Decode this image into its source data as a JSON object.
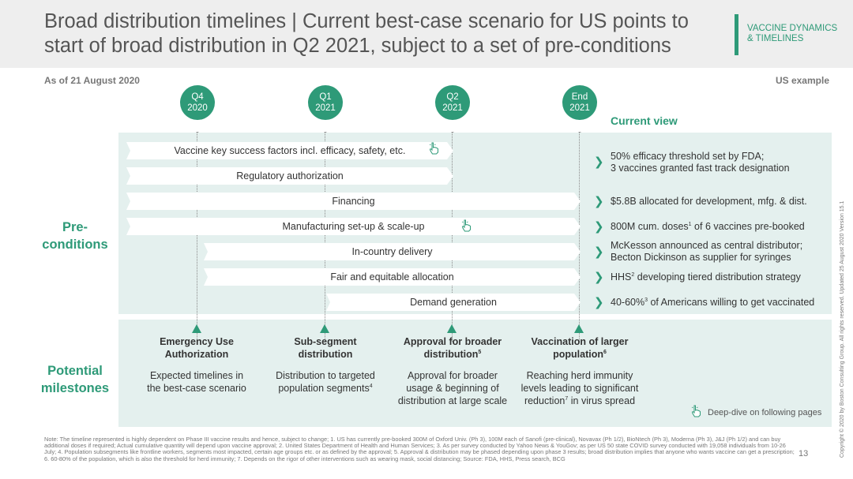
{
  "header": {
    "title": "Broad distribution timelines | Current best-case scenario for US points to start of broad distribution in Q2 2021, subject to a set of pre-conditions",
    "topic_line1": "VACCINE DYNAMICS",
    "topic_line2": "& TIMELINES"
  },
  "as_of": "As of 21 August 2020",
  "example_label": "US example",
  "timeline": [
    {
      "line1": "Q4",
      "line2": "2020"
    },
    {
      "line1": "Q1",
      "line2": "2021"
    },
    {
      "line1": "Q2",
      "line2": "2021"
    },
    {
      "line1": "End",
      "line2": "2021"
    }
  ],
  "current_view_label": "Current view",
  "preconditions_label_1": "Pre-",
  "preconditions_label_2": "conditions",
  "preconditions": [
    {
      "label": "Vaccine key success factors incl. efficacy, safety, etc.",
      "view_line1": "50% efficacy threshold set by FDA;",
      "view_line2": "3 vaccines granted fast track designation"
    },
    {
      "label": "Regulatory authorization",
      "view_line1": "",
      "view_line2": ""
    },
    {
      "label": "Financing",
      "view_line1": "$5.8B allocated for development, mfg. & dist.",
      "view_line2": ""
    },
    {
      "label": "Manufacturing set-up & scale-up",
      "view_pre": "800M cum. doses",
      "view_sup": "1",
      "view_post": " of 6 vaccines pre-booked"
    },
    {
      "label": "In-country delivery",
      "view_line1": "McKesson announced as central distributor;",
      "view_line2": "Becton Dickinson as supplier for syringes"
    },
    {
      "label": "Fair and equitable allocation",
      "view_pre": "HHS",
      "view_sup": "2",
      "view_post": " developing tiered distribution strategy"
    },
    {
      "label": "Demand generation",
      "view_pre": "40-60%",
      "view_sup": "3",
      "view_post": " of Americans willing to get vaccinated"
    }
  ],
  "milestones_label_1": "Potential",
  "milestones_label_2": "milestones",
  "milestones": [
    {
      "title_line1": "Emergency Use",
      "title_line2": "Authorization",
      "title_sup": "",
      "desc_line1": "Expected timelines in",
      "desc_line2": "the best-case scenario",
      "desc_line3": "",
      "desc_sup": ""
    },
    {
      "title_line1": "Sub-segment",
      "title_line2": "distribution",
      "title_sup": "",
      "desc_line1": "Distribution to targeted",
      "desc_line2": "population segments",
      "desc_line3": "",
      "desc_sup": "4"
    },
    {
      "title_line1": "Approval for broader",
      "title_line2": "distribution",
      "title_sup": "5",
      "desc_line1": "Approval for broader",
      "desc_line2": "usage & beginning of",
      "desc_line3": "distribution at large scale",
      "desc_sup": ""
    },
    {
      "title_line1": "Vaccination of larger",
      "title_line2": "population",
      "title_sup": "6",
      "desc_line1": "Reaching herd immunity",
      "desc_line2": "levels leading to significant",
      "desc_line3_pre": "reduction",
      "desc_line3_sup": "7",
      "desc_line3_post": " in virus spread"
    }
  ],
  "deep_dive_label": "Deep-dive on following pages",
  "note": "Note: The timeline represented is highly dependent on Phase III vaccine results and hence, subject to change; 1. US has currently pre-booked 300M of Oxford Univ. (Ph 3), 100M each of Sanofi (pre-clinical), Novavax (Ph 1/2), BioNtech (Ph 3), Moderna (Ph 3), J&J (Ph 1/2) and can buy additional doses if required; Actual cumulative quantity will depend upon vaccine approval; 2. United States Department of Health and Human Services; 3. As per survey conducted by Yahoo News & YouGov; as per US 50 state COVID survey conducted with 19,058 individuals from 10-26 July; 4. Population subsegments like frontline workers, segments most impacted, certain age groups etc. or as defined by the approval; 5. Approval & distribution may be phased depending upon phase 3 results; broad distribution implies that anyone who wants vaccine can get a prescription; 6. 60-80% of the population, which is also the threshold for herd immunity; 7. Depends on the rigor of other interventions such as wearing mask, social distancing; Source: FDA, HHS, Press search, BCG",
  "page_number": "13",
  "copyright": "Copyright © 2020 by Boston Consulting Group. All rights reserved. Updated 25 August 2020 Version 15.1",
  "colors": {
    "accent": "#2e9a78",
    "panel": "#e4f0ee",
    "header_bg": "#eeeeee"
  },
  "icons": [
    "hand-pointer-icon",
    "chevron-right-icon",
    "triangle-up-icon"
  ]
}
